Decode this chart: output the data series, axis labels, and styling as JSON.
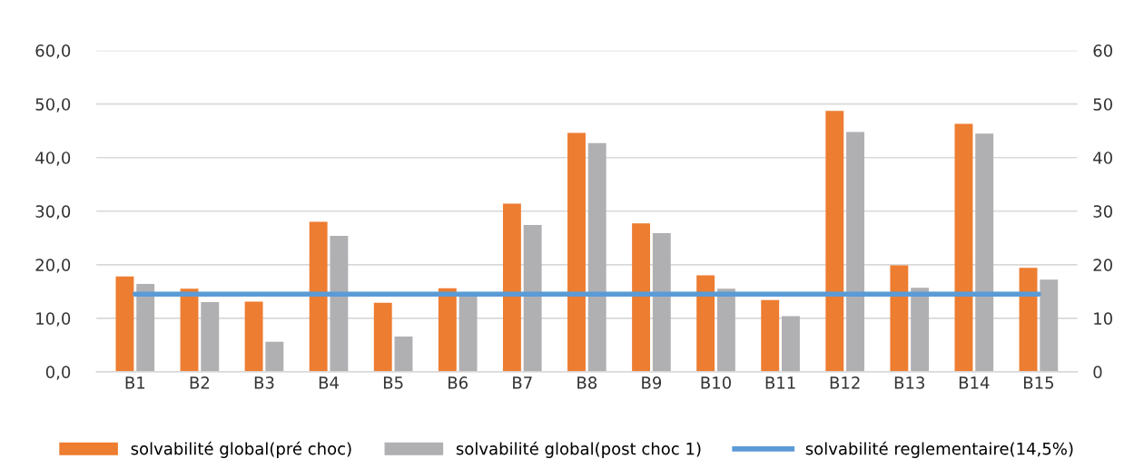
{
  "chart_data": {
    "type": "bar",
    "categories": [
      "B1",
      "B2",
      "B3",
      "B4",
      "B5",
      "B6",
      "B7",
      "B8",
      "B9",
      "B10",
      "B11",
      "B12",
      "B13",
      "B14",
      "B15"
    ],
    "series": [
      {
        "name": "solvabilité global(pré choc)",
        "color": "#ed7d31",
        "values": [
          17.8,
          15.5,
          13.1,
          28.0,
          12.9,
          15.6,
          31.4,
          44.6,
          27.7,
          18.0,
          13.4,
          48.7,
          19.9,
          46.3,
          19.4
        ]
      },
      {
        "name": "solvabilité global(post choc 1)",
        "color": "#b0b0b3",
        "values": [
          16.4,
          13.0,
          5.6,
          25.4,
          6.6,
          14.1,
          27.4,
          42.7,
          25.9,
          15.5,
          10.4,
          44.8,
          15.7,
          44.5,
          17.2
        ]
      },
      {
        "name": "solvabilité reglementaire(14,5%)",
        "color": "#5b9bd5",
        "type": "line",
        "values": [
          14.5,
          14.5,
          14.5,
          14.5,
          14.5,
          14.5,
          14.5,
          14.5,
          14.5,
          14.5,
          14.5,
          14.5,
          14.5,
          14.5,
          14.5
        ]
      }
    ],
    "ylim": [
      0,
      60
    ],
    "yticks": [
      {
        "value": 0,
        "label": "0,0"
      },
      {
        "value": 10,
        "label": "10,0"
      },
      {
        "value": 20,
        "label": "20,0"
      },
      {
        "value": 30,
        "label": "30,0"
      },
      {
        "value": 40,
        "label": "40,0"
      },
      {
        "value": 50,
        "label": "50,0"
      },
      {
        "value": 60,
        "label": "60,0"
      }
    ],
    "y2lim": [
      0,
      60
    ],
    "y2ticks": [
      0,
      10,
      20,
      30,
      40,
      50,
      60
    ],
    "grid": "y",
    "legend": "bottom",
    "marker": "none",
    "line_style": "solid"
  }
}
